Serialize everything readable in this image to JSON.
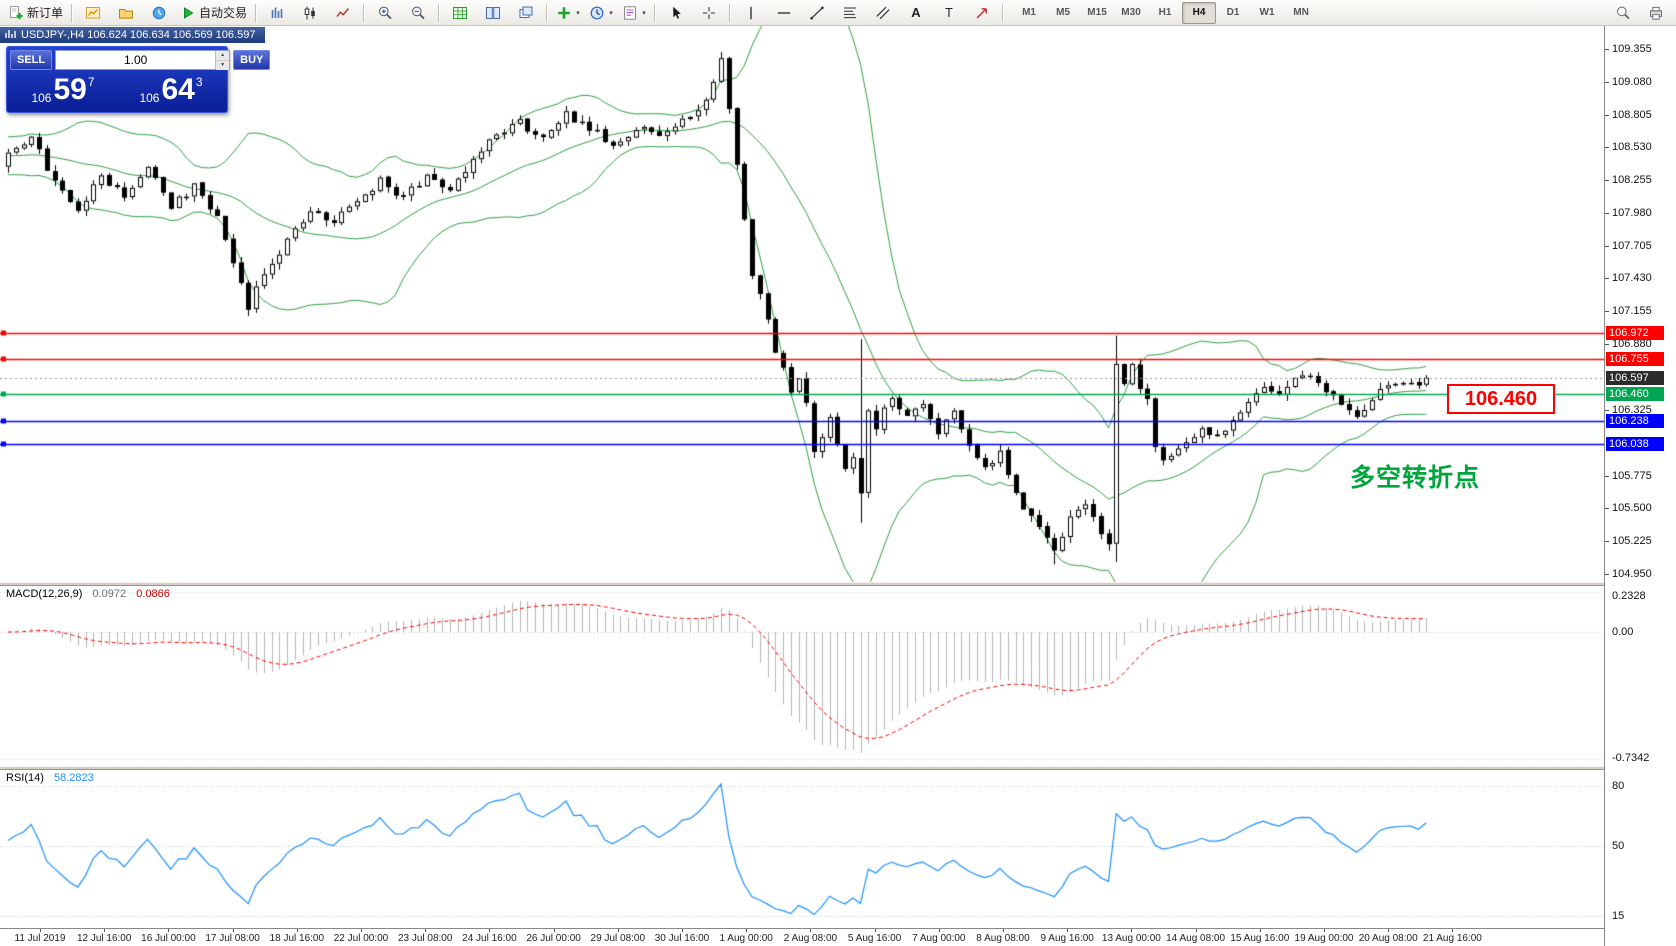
{
  "toolbar": {
    "new_order_label": "新订单",
    "auto_trading_label": "自动交易",
    "timeframes": [
      "M1",
      "M5",
      "M15",
      "M30",
      "H1",
      "H4",
      "D1",
      "W1",
      "MN"
    ],
    "active_timeframe": "H4",
    "icon_groups": [
      [
        "chart-icon",
        "profiles-icon",
        "market-watch-icon"
      ],
      [
        "bar-chart-icon",
        "candlestick-icon",
        "line-chart-icon"
      ],
      [
        "zoom-in-icon",
        "zoom-out-icon"
      ],
      [
        "grid-icon",
        "tile-windows-icon",
        "cascade-icon"
      ],
      [
        "indicators-icon",
        "periods-icon",
        "templates-icon"
      ],
      [
        "cursor-icon",
        "crosshair-icon"
      ],
      [
        "vertical-line-icon",
        "horizontal-line-icon",
        "trendline-icon",
        "fibonacci-icon",
        "channel-icon",
        "text-icon",
        "label-icon",
        "arrows-icon"
      ]
    ],
    "right_icons": [
      "search-icon",
      "print-icon"
    ]
  },
  "chart_title": {
    "text": "USDJPY-,H4  106.624 106.634 106.569 106.597"
  },
  "trade_panel": {
    "sell_label": "SELL",
    "buy_label": "BUY",
    "volume": "1.00",
    "bid": {
      "prefix": "106",
      "big": "59",
      "sup": "7"
    },
    "ask": {
      "prefix": "106",
      "big": "64",
      "sup": "3"
    }
  },
  "price_axis": {
    "ticks": [
      "109.355",
      "109.080",
      "108.805",
      "108.530",
      "108.255",
      "107.980",
      "107.705",
      "107.430",
      "107.155",
      "106.880",
      "106.325",
      "105.775",
      "105.500",
      "105.225",
      "104.950"
    ]
  },
  "price_lines": [
    {
      "label": "106.972",
      "price": 106.972,
      "color": "#ff0000"
    },
    {
      "label": "106.755",
      "price": 106.755,
      "color": "#ff0000"
    },
    {
      "label": "106.460",
      "price": 106.46,
      "color": "#00a651"
    },
    {
      "label": "106.238",
      "price": 106.238,
      "color": "#0000ff"
    },
    {
      "label": "106.038",
      "price": 106.038,
      "color": "#0000ff"
    }
  ],
  "current_price": {
    "label": "106.597",
    "price": 106.597,
    "badge_color": "#2b2b2b"
  },
  "time_axis": {
    "labels": [
      "11 Jul 2019",
      "12 Jul 16:00",
      "16 Jul 00:00",
      "17 Jul 08:00",
      "18 Jul 16:00",
      "22 Jul 00:00",
      "23 Jul 08:00",
      "24 Jul 16:00",
      "26 Jul 00:00",
      "29 Jul 08:00",
      "30 Jul 16:00",
      "1 Aug 00:00",
      "2 Aug 08:00",
      "5 Aug 16:00",
      "7 Aug 00:00",
      "8 Aug 08:00",
      "9 Aug 16:00",
      "13 Aug 00:00",
      "14 Aug 08:00",
      "15 Aug 16:00",
      "19 Aug 00:00",
      "20 Aug 08:00",
      "21 Aug 16:00"
    ]
  },
  "indicators": {
    "macd": {
      "name": "MACD(12,26,9)",
      "value_main": "0.0972",
      "value_signal": "0.0866",
      "axis_labels": [
        "0.2328",
        "0.00",
        "-0.7342"
      ]
    },
    "rsi": {
      "name": "RSI(14)",
      "value": "58.2823",
      "axis_labels": [
        "80",
        "50",
        "15"
      ]
    }
  },
  "annotations": {
    "price_box": "106.460",
    "turning_point": "多空转折点"
  },
  "colors": {
    "bollinger": "#2f9e44",
    "bull": "#ffffff",
    "bear": "#000000",
    "macd_hist": "#b4b4b4",
    "macd_signal": "#ff0000",
    "rsi_line": "#1e90ff",
    "annotation_red": "#ff0000",
    "annotation_green": "#00a63c",
    "line_red": "#ff0000",
    "line_green": "#00a651",
    "line_blue": "#0000ff"
  },
  "chart_data": {
    "type": "candlestick",
    "title": "USDJPY-,H4",
    "symbol": "USDJPY",
    "timeframe": "H4",
    "current_ohlc": {
      "open": 106.624,
      "high": 106.634,
      "low": 106.569,
      "close": 106.597
    },
    "current_price": 106.597,
    "bar_count": 184,
    "price_axis_range": [
      104.95,
      109.355
    ],
    "close_anchors": [
      [
        0,
        108.45
      ],
      [
        3,
        108.6
      ],
      [
        6,
        108.25
      ],
      [
        9,
        108.0
      ],
      [
        12,
        108.3
      ],
      [
        15,
        108.1
      ],
      [
        18,
        108.35
      ],
      [
        21,
        108.05
      ],
      [
        24,
        108.2
      ],
      [
        27,
        107.95
      ],
      [
        29,
        107.55
      ],
      [
        31,
        107.2
      ],
      [
        33,
        107.45
      ],
      [
        36,
        107.75
      ],
      [
        39,
        108.0
      ],
      [
        42,
        107.9
      ],
      [
        45,
        108.1
      ],
      [
        48,
        108.25
      ],
      [
        51,
        108.1
      ],
      [
        54,
        108.3
      ],
      [
        57,
        108.15
      ],
      [
        60,
        108.4
      ],
      [
        63,
        108.65
      ],
      [
        66,
        108.75
      ],
      [
        69,
        108.6
      ],
      [
        72,
        108.8
      ],
      [
        75,
        108.7
      ],
      [
        78,
        108.55
      ],
      [
        81,
        108.7
      ],
      [
        84,
        108.6
      ],
      [
        87,
        108.75
      ],
      [
        90,
        108.9
      ],
      [
        91,
        109.1
      ],
      [
        92,
        109.28
      ],
      [
        93,
        108.85
      ],
      [
        94,
        108.4
      ],
      [
        95,
        107.9
      ],
      [
        96,
        107.45
      ],
      [
        97,
        107.3
      ],
      [
        98,
        107.05
      ],
      [
        99,
        106.8
      ],
      [
        100,
        106.65
      ],
      [
        101,
        106.5
      ],
      [
        102,
        106.6
      ],
      [
        103,
        106.35
      ],
      [
        104,
        105.95
      ],
      [
        105,
        106.1
      ],
      [
        106,
        106.3
      ],
      [
        107,
        106.05
      ],
      [
        108,
        105.8
      ],
      [
        109,
        105.95
      ],
      [
        110,
        105.62
      ],
      [
        111,
        106.35
      ],
      [
        112,
        106.2
      ],
      [
        114,
        106.45
      ],
      [
        116,
        106.25
      ],
      [
        118,
        106.4
      ],
      [
        120,
        106.15
      ],
      [
        122,
        106.3
      ],
      [
        124,
        106.0
      ],
      [
        126,
        105.85
      ],
      [
        128,
        105.95
      ],
      [
        130,
        105.6
      ],
      [
        132,
        105.45
      ],
      [
        134,
        105.28
      ],
      [
        135,
        105.12
      ],
      [
        137,
        105.4
      ],
      [
        139,
        105.55
      ],
      [
        141,
        105.3
      ],
      [
        142,
        105.2
      ],
      [
        143,
        106.7
      ],
      [
        144,
        106.55
      ],
      [
        145,
        106.68
      ],
      [
        146,
        106.5
      ],
      [
        147,
        106.4
      ],
      [
        148,
        106.05
      ],
      [
        149,
        105.88
      ],
      [
        150,
        105.95
      ],
      [
        152,
        106.05
      ],
      [
        154,
        106.2
      ],
      [
        156,
        106.08
      ],
      [
        158,
        106.25
      ],
      [
        160,
        106.42
      ],
      [
        162,
        106.55
      ],
      [
        164,
        106.45
      ],
      [
        166,
        106.62
      ],
      [
        168,
        106.65
      ],
      [
        170,
        106.48
      ],
      [
        172,
        106.35
      ],
      [
        174,
        106.28
      ],
      [
        176,
        106.42
      ],
      [
        178,
        106.52
      ],
      [
        180,
        106.55
      ],
      [
        182,
        106.57
      ],
      [
        183,
        106.597
      ]
    ],
    "bar_overrides": {
      "92": {
        "high": 109.33
      },
      "110": {
        "high": 106.92,
        "low": 105.38
      },
      "135": {
        "low": 105.03
      },
      "143": {
        "high": 106.95,
        "low": 105.05
      }
    },
    "overlays": {
      "bollinger_period": 20,
      "bollinger_deviation": 2
    },
    "indicator_params": {
      "macd": {
        "fast": 12,
        "slow": 26,
        "signal": 9,
        "last_main": 0.0972,
        "last_signal": 0.0866,
        "scale_max": 0.2328,
        "scale_min": -0.7342
      },
      "rsi": {
        "period": 14,
        "last": 58.2823,
        "levels": [
          80,
          50,
          15
        ]
      }
    },
    "horizontal_lines": [
      {
        "price": 106.972,
        "color": "red"
      },
      {
        "price": 106.755,
        "color": "red"
      },
      {
        "price": 106.46,
        "color": "green"
      },
      {
        "price": 106.238,
        "color": "blue"
      },
      {
        "price": 106.038,
        "color": "blue"
      }
    ]
  }
}
